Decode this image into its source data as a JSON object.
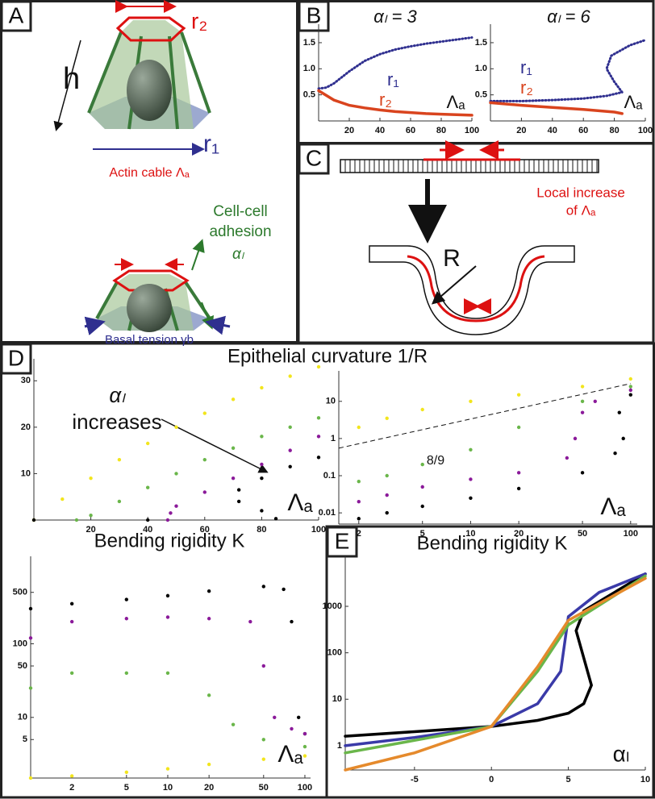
{
  "panels": {
    "letters": [
      "A",
      "B",
      "C",
      "D",
      "E"
    ]
  },
  "diagram_a": {
    "r_top": "r₂",
    "height": "h",
    "r_bottom": "r₁",
    "actin": "Actin cable Λₐ",
    "adhesion": [
      "Cell-cell",
      "adhesion",
      "αₗ"
    ],
    "basal": "Basal tension γb"
  },
  "diagram_c": {
    "local": [
      "Local increase",
      "of Λₐ"
    ],
    "radius": "R"
  },
  "chart_data": [
    {
      "type": "line",
      "title": "αₗ = 3",
      "x_label": "Λₐ",
      "xlim": [
        0,
        100
      ],
      "ylim": [
        0,
        1.7
      ],
      "xticks": [
        20,
        40,
        60,
        80,
        100
      ],
      "yticks": [
        0.5,
        {
          "value": 1,
          "label": "1.0"
        },
        1.5
      ],
      "series": [
        {
          "name": "r₁",
          "color": "#2f2f8f",
          "dotted": true,
          "x": [
            0,
            5,
            10,
            20,
            30,
            40,
            50,
            60,
            70,
            80,
            90,
            100
          ],
          "values": [
            0.62,
            0.64,
            0.72,
            0.95,
            1.15,
            1.28,
            1.37,
            1.43,
            1.48,
            1.52,
            1.56,
            1.6
          ]
        },
        {
          "name": "r₂",
          "color": "#d9441e",
          "x": [
            0,
            10,
            20,
            30,
            40,
            50,
            60,
            70,
            80,
            90,
            100
          ],
          "values": [
            0.58,
            0.4,
            0.3,
            0.25,
            0.21,
            0.18,
            0.16,
            0.14,
            0.13,
            0.12,
            0.11
          ]
        }
      ]
    },
    {
      "type": "line",
      "title": "αₗ = 6",
      "x_label": "Λₐ",
      "xlim": [
        0,
        100
      ],
      "ylim": [
        0,
        1.7
      ],
      "xticks": [
        20,
        40,
        60,
        80,
        100
      ],
      "yticks": [
        0.5,
        {
          "value": 1,
          "label": "1.0"
        },
        1.5
      ],
      "series": [
        {
          "name": "r₁",
          "color": "#2f2f8f",
          "dotted": true,
          "x": [
            0,
            20,
            40,
            60,
            75,
            85,
            80,
            75,
            78,
            90,
            100
          ],
          "values": [
            0.38,
            0.38,
            0.4,
            0.43,
            0.48,
            0.55,
            0.75,
            1.0,
            1.25,
            1.45,
            1.55
          ]
        },
        {
          "name": "r₂",
          "color": "#d9441e",
          "x": [
            0,
            20,
            40,
            60,
            80,
            85
          ],
          "values": [
            0.35,
            0.3,
            0.26,
            0.22,
            0.17,
            0.14
          ]
        }
      ]
    },
    {
      "type": "scatter",
      "title": "Epithelial curvature 1/R",
      "x_label": "Λₐ",
      "annotations": [
        "αₗ",
        "increases"
      ],
      "xlim": [
        0,
        100
      ],
      "ylim": [
        0,
        33
      ],
      "xticks": [
        20,
        40,
        60,
        80,
        100
      ],
      "yticks": [
        10,
        20,
        30
      ],
      "series": [
        {
          "color": "#f2e51d",
          "x": [
            0,
            10,
            20,
            30,
            40,
            50,
            60,
            70,
            80,
            90,
            100
          ],
          "values": [
            0,
            4.5,
            9,
            13,
            16.5,
            20,
            23,
            26,
            28.5,
            31,
            33
          ]
        },
        {
          "color": "#6ab64a",
          "x": [
            15,
            20,
            30,
            40,
            50,
            60,
            70,
            80,
            90,
            100
          ],
          "values": [
            0,
            1,
            4,
            7,
            10,
            13,
            15.5,
            18,
            20,
            22
          ]
        },
        {
          "color": "#8b1a9a",
          "x": [
            47,
            48,
            50,
            60,
            70,
            80,
            90,
            100
          ],
          "values": [
            0,
            1.5,
            3,
            6,
            9,
            12,
            15,
            18
          ]
        },
        {
          "color": "#000000",
          "x": [
            0,
            40,
            85,
            80,
            72,
            72,
            80,
            90,
            100
          ],
          "values": [
            0,
            0,
            0.3,
            2,
            4,
            6.5,
            9,
            11.5,
            13.5
          ]
        }
      ]
    },
    {
      "type": "scatter",
      "x_label": "Λₐ",
      "annotations": [
        "8/9"
      ],
      "xscale": "log",
      "yscale": "log",
      "xlim": [
        1.5,
        110
      ],
      "ylim": [
        0.005,
        40
      ],
      "xticks": [
        2,
        5,
        10,
        20,
        50,
        100
      ],
      "yticks": [
        0.01,
        0.1,
        1,
        10
      ],
      "reference_line": {
        "x": [
          1.5,
          100
        ],
        "values": [
          0.55,
          30
        ]
      },
      "series": [
        {
          "color": "#f2e51d",
          "x": [
            2,
            3,
            5,
            10,
            20,
            50,
            100
          ],
          "values": [
            2,
            3.5,
            6,
            10,
            15,
            25,
            40
          ]
        },
        {
          "color": "#6ab64a",
          "x": [
            2,
            3,
            5,
            10,
            20,
            50,
            100
          ],
          "values": [
            0.07,
            0.1,
            0.2,
            0.5,
            2,
            10,
            25
          ]
        },
        {
          "color": "#8b1a9a",
          "x": [
            2,
            3,
            5,
            10,
            20,
            40,
            45,
            50,
            60,
            100
          ],
          "values": [
            0.02,
            0.03,
            0.05,
            0.08,
            0.12,
            0.3,
            1,
            5,
            10,
            20
          ]
        },
        {
          "color": "#000000",
          "x": [
            2,
            3,
            5,
            10,
            20,
            50,
            80,
            90,
            85,
            100
          ],
          "values": [
            0.007,
            0.01,
            0.015,
            0.025,
            0.045,
            0.12,
            0.4,
            1,
            5,
            15
          ]
        }
      ]
    },
    {
      "type": "scatter",
      "title": "Bending rigidity  K",
      "x_label": "Λₐ",
      "xscale": "log",
      "yscale": "log",
      "xlim": [
        1,
        110
      ],
      "ylim": [
        1.5,
        1200
      ],
      "xticks": [
        2,
        5,
        10,
        20,
        50,
        100
      ],
      "yticks": [
        5,
        10,
        50,
        100,
        500
      ],
      "series": [
        {
          "color": "#000000",
          "x": [
            1,
            2,
            5,
            10,
            20,
            50,
            70,
            80,
            90,
            100
          ],
          "values": [
            300,
            350,
            400,
            450,
            520,
            600,
            550,
            200,
            10,
            6
          ]
        },
        {
          "color": "#8b1a9a",
          "x": [
            1,
            2,
            5,
            10,
            20,
            40,
            50,
            60,
            80,
            100
          ],
          "values": [
            120,
            200,
            220,
            230,
            220,
            200,
            50,
            10,
            7,
            6
          ]
        },
        {
          "color": "#6ab64a",
          "x": [
            1,
            2,
            5,
            10,
            20,
            30,
            50,
            100
          ],
          "values": [
            25,
            40,
            40,
            40,
            20,
            8,
            5,
            4
          ]
        },
        {
          "color": "#f2e51d",
          "x": [
            1,
            2,
            5,
            10,
            20,
            50,
            100
          ],
          "values": [
            1.5,
            1.6,
            1.8,
            2,
            2.3,
            2.7,
            3
          ]
        }
      ]
    },
    {
      "type": "line",
      "title": "Bending rigidity K",
      "x_label": "αₗ",
      "yscale": "log",
      "xlim": [
        -9.5,
        10
      ],
      "ylim": [
        0.3,
        8000
      ],
      "xticks": [
        -5,
        0,
        5,
        10
      ],
      "yticks": [
        1,
        10,
        100,
        1000
      ],
      "series": [
        {
          "color": "#000000",
          "x": [
            -9.5,
            -5,
            0,
            3,
            5,
            6,
            6.5,
            5.5,
            6,
            8,
            10
          ],
          "values": [
            1.6,
            2,
            2.6,
            3.5,
            5,
            8,
            20,
            300,
            800,
            2000,
            5000
          ]
        },
        {
          "color": "#3a3aa8",
          "x": [
            -9.5,
            -5,
            0,
            3,
            4.5,
            5,
            7,
            10
          ],
          "values": [
            1,
            1.5,
            2.6,
            8,
            40,
            600,
            2000,
            5000
          ]
        },
        {
          "color": "#6ab64a",
          "x": [
            -9.5,
            -5,
            0,
            3,
            5,
            10
          ],
          "values": [
            0.7,
            1.3,
            2.6,
            40,
            400,
            4500
          ]
        },
        {
          "color": "#e58a2c",
          "x": [
            -9.5,
            -5,
            0,
            3,
            5,
            10
          ],
          "values": [
            0.3,
            0.7,
            2.6,
            50,
            500,
            4000
          ]
        }
      ]
    }
  ]
}
